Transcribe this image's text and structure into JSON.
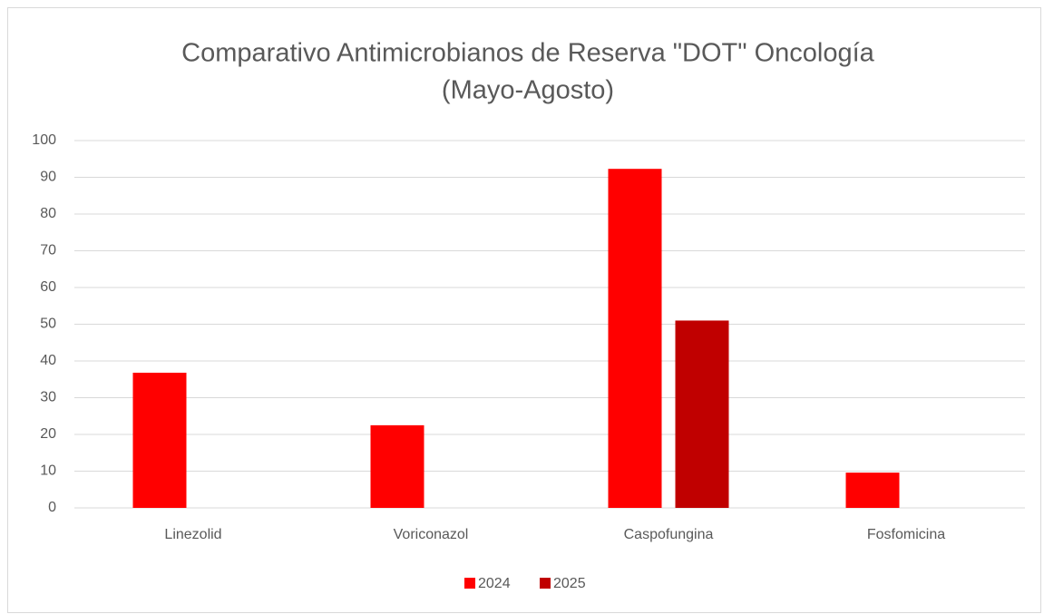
{
  "chart_data": {
    "type": "bar",
    "title": [
      "Comparativo Antimicrobianos de Reserva \"DOT\" Oncología",
      "(Mayo-Agosto)"
    ],
    "categories": [
      "Linezolid",
      "Voriconazol",
      "Caspofungina",
      "Fosfomicina"
    ],
    "series": [
      {
        "name": "2024",
        "color": "#ff0000",
        "values": [
          36.8,
          22.5,
          92.3,
          9.6
        ]
      },
      {
        "name": "2025",
        "color": "#c00000",
        "values": [
          0,
          0,
          51,
          0
        ]
      }
    ],
    "ylim": [
      0,
      100
    ],
    "yticks": [
      0,
      10,
      20,
      30,
      40,
      50,
      60,
      70,
      80,
      90,
      100
    ],
    "grid": true,
    "legend": "bottom"
  }
}
